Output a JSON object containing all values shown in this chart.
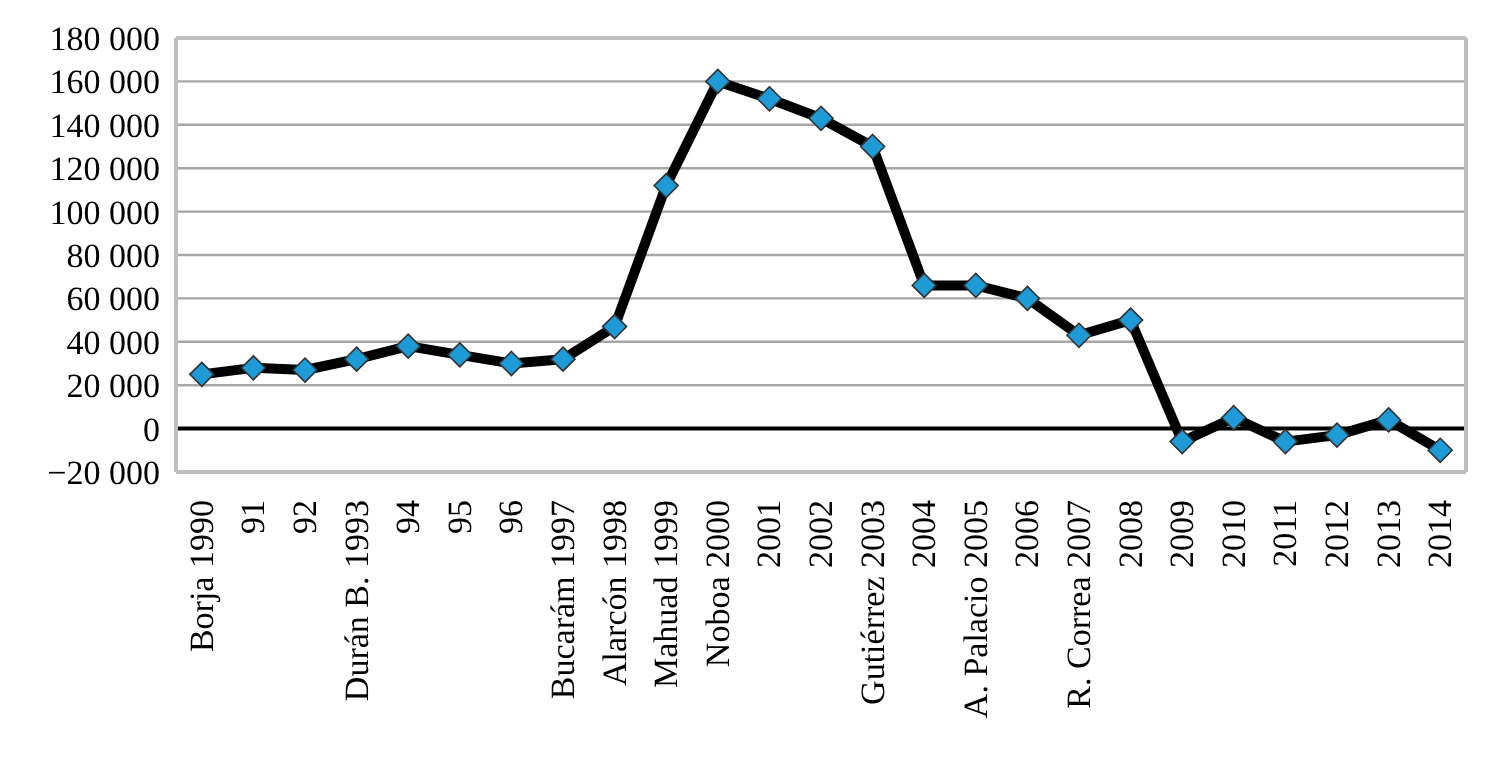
{
  "chart_data": {
    "type": "line",
    "categories": [
      "Borja 1990",
      "91",
      "92",
      "Durán B. 1993",
      "94",
      "95",
      "96",
      "Bucarám 1997",
      "Alarcón 1998",
      "Mahuad 1999",
      "Noboa 2000",
      "2001",
      "2002",
      "Gutiérrez 2003",
      "2004",
      "A. Palacio 2005",
      "2006",
      "R. Correa 2007",
      "2008",
      "2009",
      "2010",
      "2011",
      "2012",
      "2013",
      "2014"
    ],
    "series": [
      {
        "color": "#1e9ad6",
        "values": [
          25000,
          28000,
          27000,
          32000,
          38000,
          34000,
          30000,
          32000,
          47000,
          112000,
          160000,
          152000,
          143000,
          130000,
          66000,
          66000,
          60000,
          43000,
          50000,
          -6000,
          5000,
          -6000,
          -3000,
          4000,
          -10000
        ]
      }
    ],
    "ylim": [
      -20000,
      180000
    ],
    "yticks": [
      {
        "value": -20000,
        "label": "−20 000"
      },
      0,
      {
        "value": 20000,
        "label": "20 000"
      },
      {
        "value": 40000,
        "label": "40 000"
      },
      {
        "value": 60000,
        "label": "60 000"
      },
      {
        "value": 80000,
        "label": "80 000"
      },
      {
        "value": 100000,
        "label": "100 000"
      },
      {
        "value": 120000,
        "label": "120 000"
      },
      {
        "value": 140000,
        "label": "140 000"
      },
      {
        "value": 160000,
        "label": "160 000"
      },
      {
        "value": 180000,
        "label": "180 000"
      }
    ],
    "grid": "y",
    "marker": "diamond",
    "line_style": "solid"
  }
}
